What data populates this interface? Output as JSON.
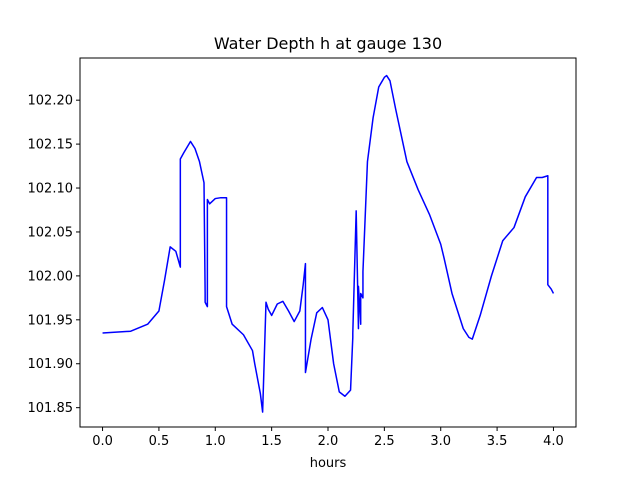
{
  "chart_data": {
    "type": "line",
    "title": "Water Depth h at gauge 130",
    "xlabel": "hours",
    "ylabel": "",
    "xlim": [
      -0.2,
      4.2
    ],
    "ylim": [
      101.828,
      102.248
    ],
    "x_ticks": [
      0.0,
      0.5,
      1.0,
      1.5,
      2.0,
      2.5,
      3.0,
      3.5,
      4.0
    ],
    "x_tick_labels": [
      "0.0",
      "0.5",
      "1.0",
      "1.5",
      "2.0",
      "2.5",
      "3.0",
      "3.5",
      "4.0"
    ],
    "y_ticks": [
      101.85,
      101.9,
      101.95,
      102.0,
      102.05,
      102.1,
      102.15,
      102.2
    ],
    "y_tick_labels": [
      "101.85",
      "101.90",
      "101.95",
      "102.00",
      "102.05",
      "102.10",
      "102.15",
      "102.20"
    ],
    "grid": false,
    "series": [
      {
        "color": "#0000ff",
        "x": [
          0.0,
          0.25,
          0.4,
          0.5,
          0.55,
          0.6,
          0.65,
          0.69,
          0.69,
          0.72,
          0.78,
          0.82,
          0.86,
          0.9,
          0.91,
          0.91,
          0.93,
          0.93,
          0.95,
          1.0,
          1.05,
          1.1,
          1.1,
          1.15,
          1.25,
          1.33,
          1.35,
          1.4,
          1.42,
          1.45,
          1.47,
          1.5,
          1.55,
          1.6,
          1.65,
          1.7,
          1.75,
          1.78,
          1.8,
          1.8,
          1.85,
          1.9,
          1.95,
          2.0,
          2.05,
          2.1,
          2.15,
          2.2,
          2.22,
          2.22,
          2.25,
          2.27,
          2.27,
          2.29,
          2.29,
          2.31,
          2.31,
          2.35,
          2.4,
          2.45,
          2.5,
          2.52,
          2.55,
          2.6,
          2.7,
          2.8,
          2.9,
          3.0,
          3.03,
          3.1,
          3.2,
          3.25,
          3.28,
          3.35,
          3.45,
          3.55,
          3.65,
          3.75,
          3.85,
          3.9,
          3.95,
          3.95,
          3.98,
          4.0
        ],
        "y": [
          101.935,
          101.937,
          101.945,
          101.96,
          101.995,
          102.033,
          102.028,
          102.01,
          102.133,
          102.14,
          102.153,
          102.145,
          102.13,
          102.106,
          101.98,
          101.97,
          101.965,
          102.087,
          102.082,
          102.088,
          102.089,
          102.089,
          101.965,
          101.945,
          101.933,
          101.915,
          101.9,
          101.866,
          101.845,
          101.97,
          101.962,
          101.955,
          101.968,
          101.971,
          101.96,
          101.948,
          101.96,
          101.99,
          102.014,
          101.89,
          101.928,
          101.958,
          101.964,
          101.95,
          101.9,
          101.868,
          101.863,
          101.87,
          101.93,
          101.935,
          102.074,
          101.94,
          101.988,
          101.945,
          101.98,
          101.975,
          102.005,
          102.13,
          102.18,
          102.215,
          102.226,
          102.228,
          102.222,
          102.19,
          102.13,
          102.098,
          102.07,
          102.036,
          102.02,
          101.98,
          101.94,
          101.93,
          101.928,
          101.955,
          102.0,
          102.04,
          102.055,
          102.09,
          102.112,
          102.112,
          102.114,
          101.99,
          101.985,
          101.98
        ],
        "note_points": []
      }
    ]
  }
}
